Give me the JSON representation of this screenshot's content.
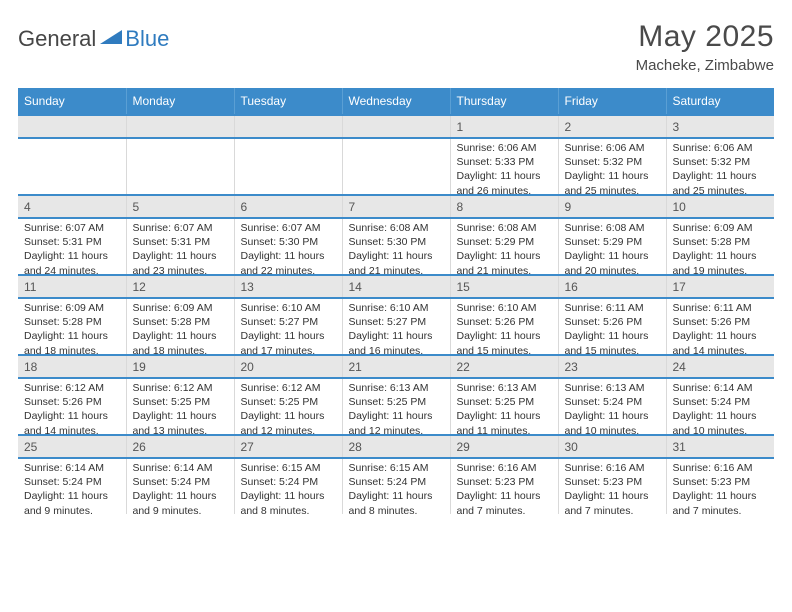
{
  "brand": {
    "part1": "General",
    "part2": "Blue"
  },
  "title": "May 2025",
  "location": "Macheke, Zimbabwe",
  "colors": {
    "header_bg": "#3c8bca",
    "header_text": "#ffffff",
    "daynum_bg": "#e7e7e7",
    "border_week": "#3c8bca",
    "border_cell": "#d9d9d9",
    "text": "#333333",
    "brand_blue": "#2f7bbf",
    "brand_gray": "#464646"
  },
  "day_headers": [
    "Sunday",
    "Monday",
    "Tuesday",
    "Wednesday",
    "Thursday",
    "Friday",
    "Saturday"
  ],
  "weeks": [
    [
      {
        "day": "",
        "sunrise": "",
        "sunset": "",
        "daylight": ""
      },
      {
        "day": "",
        "sunrise": "",
        "sunset": "",
        "daylight": ""
      },
      {
        "day": "",
        "sunrise": "",
        "sunset": "",
        "daylight": ""
      },
      {
        "day": "",
        "sunrise": "",
        "sunset": "",
        "daylight": ""
      },
      {
        "day": "1",
        "sunrise": "Sunrise: 6:06 AM",
        "sunset": "Sunset: 5:33 PM",
        "daylight": "Daylight: 11 hours and 26 minutes."
      },
      {
        "day": "2",
        "sunrise": "Sunrise: 6:06 AM",
        "sunset": "Sunset: 5:32 PM",
        "daylight": "Daylight: 11 hours and 25 minutes."
      },
      {
        "day": "3",
        "sunrise": "Sunrise: 6:06 AM",
        "sunset": "Sunset: 5:32 PM",
        "daylight": "Daylight: 11 hours and 25 minutes."
      }
    ],
    [
      {
        "day": "4",
        "sunrise": "Sunrise: 6:07 AM",
        "sunset": "Sunset: 5:31 PM",
        "daylight": "Daylight: 11 hours and 24 minutes."
      },
      {
        "day": "5",
        "sunrise": "Sunrise: 6:07 AM",
        "sunset": "Sunset: 5:31 PM",
        "daylight": "Daylight: 11 hours and 23 minutes."
      },
      {
        "day": "6",
        "sunrise": "Sunrise: 6:07 AM",
        "sunset": "Sunset: 5:30 PM",
        "daylight": "Daylight: 11 hours and 22 minutes."
      },
      {
        "day": "7",
        "sunrise": "Sunrise: 6:08 AM",
        "sunset": "Sunset: 5:30 PM",
        "daylight": "Daylight: 11 hours and 21 minutes."
      },
      {
        "day": "8",
        "sunrise": "Sunrise: 6:08 AM",
        "sunset": "Sunset: 5:29 PM",
        "daylight": "Daylight: 11 hours and 21 minutes."
      },
      {
        "day": "9",
        "sunrise": "Sunrise: 6:08 AM",
        "sunset": "Sunset: 5:29 PM",
        "daylight": "Daylight: 11 hours and 20 minutes."
      },
      {
        "day": "10",
        "sunrise": "Sunrise: 6:09 AM",
        "sunset": "Sunset: 5:28 PM",
        "daylight": "Daylight: 11 hours and 19 minutes."
      }
    ],
    [
      {
        "day": "11",
        "sunrise": "Sunrise: 6:09 AM",
        "sunset": "Sunset: 5:28 PM",
        "daylight": "Daylight: 11 hours and 18 minutes."
      },
      {
        "day": "12",
        "sunrise": "Sunrise: 6:09 AM",
        "sunset": "Sunset: 5:28 PM",
        "daylight": "Daylight: 11 hours and 18 minutes."
      },
      {
        "day": "13",
        "sunrise": "Sunrise: 6:10 AM",
        "sunset": "Sunset: 5:27 PM",
        "daylight": "Daylight: 11 hours and 17 minutes."
      },
      {
        "day": "14",
        "sunrise": "Sunrise: 6:10 AM",
        "sunset": "Sunset: 5:27 PM",
        "daylight": "Daylight: 11 hours and 16 minutes."
      },
      {
        "day": "15",
        "sunrise": "Sunrise: 6:10 AM",
        "sunset": "Sunset: 5:26 PM",
        "daylight": "Daylight: 11 hours and 15 minutes."
      },
      {
        "day": "16",
        "sunrise": "Sunrise: 6:11 AM",
        "sunset": "Sunset: 5:26 PM",
        "daylight": "Daylight: 11 hours and 15 minutes."
      },
      {
        "day": "17",
        "sunrise": "Sunrise: 6:11 AM",
        "sunset": "Sunset: 5:26 PM",
        "daylight": "Daylight: 11 hours and 14 minutes."
      }
    ],
    [
      {
        "day": "18",
        "sunrise": "Sunrise: 6:12 AM",
        "sunset": "Sunset: 5:26 PM",
        "daylight": "Daylight: 11 hours and 14 minutes."
      },
      {
        "day": "19",
        "sunrise": "Sunrise: 6:12 AM",
        "sunset": "Sunset: 5:25 PM",
        "daylight": "Daylight: 11 hours and 13 minutes."
      },
      {
        "day": "20",
        "sunrise": "Sunrise: 6:12 AM",
        "sunset": "Sunset: 5:25 PM",
        "daylight": "Daylight: 11 hours and 12 minutes."
      },
      {
        "day": "21",
        "sunrise": "Sunrise: 6:13 AM",
        "sunset": "Sunset: 5:25 PM",
        "daylight": "Daylight: 11 hours and 12 minutes."
      },
      {
        "day": "22",
        "sunrise": "Sunrise: 6:13 AM",
        "sunset": "Sunset: 5:25 PM",
        "daylight": "Daylight: 11 hours and 11 minutes."
      },
      {
        "day": "23",
        "sunrise": "Sunrise: 6:13 AM",
        "sunset": "Sunset: 5:24 PM",
        "daylight": "Daylight: 11 hours and 10 minutes."
      },
      {
        "day": "24",
        "sunrise": "Sunrise: 6:14 AM",
        "sunset": "Sunset: 5:24 PM",
        "daylight": "Daylight: 11 hours and 10 minutes."
      }
    ],
    [
      {
        "day": "25",
        "sunrise": "Sunrise: 6:14 AM",
        "sunset": "Sunset: 5:24 PM",
        "daylight": "Daylight: 11 hours and 9 minutes."
      },
      {
        "day": "26",
        "sunrise": "Sunrise: 6:14 AM",
        "sunset": "Sunset: 5:24 PM",
        "daylight": "Daylight: 11 hours and 9 minutes."
      },
      {
        "day": "27",
        "sunrise": "Sunrise: 6:15 AM",
        "sunset": "Sunset: 5:24 PM",
        "daylight": "Daylight: 11 hours and 8 minutes."
      },
      {
        "day": "28",
        "sunrise": "Sunrise: 6:15 AM",
        "sunset": "Sunset: 5:24 PM",
        "daylight": "Daylight: 11 hours and 8 minutes."
      },
      {
        "day": "29",
        "sunrise": "Sunrise: 6:16 AM",
        "sunset": "Sunset: 5:23 PM",
        "daylight": "Daylight: 11 hours and 7 minutes."
      },
      {
        "day": "30",
        "sunrise": "Sunrise: 6:16 AM",
        "sunset": "Sunset: 5:23 PM",
        "daylight": "Daylight: 11 hours and 7 minutes."
      },
      {
        "day": "31",
        "sunrise": "Sunrise: 6:16 AM",
        "sunset": "Sunset: 5:23 PM",
        "daylight": "Daylight: 11 hours and 7 minutes."
      }
    ]
  ]
}
